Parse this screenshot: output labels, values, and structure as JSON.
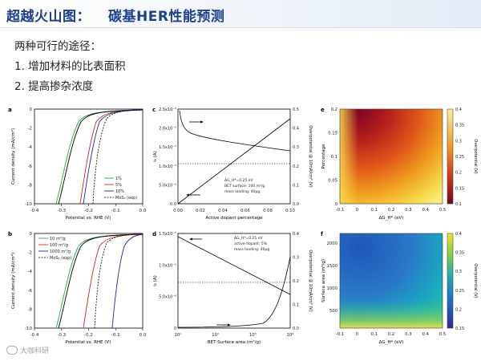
{
  "header": {
    "title_part1": "超越火山图：",
    "title_part2": "碳基HER性能预测"
  },
  "bullets": {
    "intro": "两种可行的途径：",
    "item1": "1. 增加材料的比表面积",
    "item2": "2. 提高掺杂浓度"
  },
  "watermark": "大咖科研",
  "colors": {
    "title": "#1a3f8c",
    "c_black": "#000000",
    "c_red": "#d42020",
    "c_green": "#28a745",
    "c_navy": "#1a2a8a"
  },
  "panels": {
    "a": {
      "label": "a",
      "ylabel": "Current density (mA/cm²)",
      "xlabel": "Potential vs. RHE (V)",
      "xticks": [
        "-0.4",
        "-0.3",
        "-0.2",
        "-0.1",
        "0.0"
      ],
      "yticks": [
        "0",
        "-2",
        "-4",
        "-6",
        "-8",
        "-10"
      ],
      "legend": [
        "1%",
        "5%",
        "10%",
        "MoS₂ (exp)"
      ]
    },
    "b": {
      "label": "b",
      "ylabel": "Current density (mA/cm²)",
      "xlabel": "Potential vs. RHE (V)",
      "xticks": [
        "-0.4",
        "-0.3",
        "-0.2",
        "-0.1",
        "0.0"
      ],
      "yticks": [
        "0",
        "-2",
        "-4",
        "-6",
        "-8",
        "-10"
      ],
      "legend": [
        "10 m²/g",
        "100 m²/g",
        "1000 m²/g",
        "MoS₂ (exp)"
      ]
    },
    "c": {
      "label": "c",
      "ylabel_left": "i₀ (A)",
      "ylabel_right": "Overpotential @ 10mA/cm² (V)",
      "xlabel": "Active dopant percentage",
      "xticks": [
        "0.00",
        "0.02",
        "0.04",
        "0.06",
        "0.08",
        "0.10"
      ],
      "yticks_left": [
        "0.0",
        "5.0x10⁻⁶",
        "1.0x10⁻⁵",
        "1.5x10⁻⁵",
        "2.0x10⁻⁵",
        "2.5x10⁻⁵"
      ],
      "yticks_right": [
        "0.0",
        "0.1",
        "0.2",
        "0.3",
        "0.4",
        "0.5"
      ],
      "notes": [
        "ΔG_H*=0.25 eV",
        "BET surface: 100 m²/g",
        "mass loading: 40μg"
      ]
    },
    "d": {
      "label": "d",
      "ylabel_left": "i₀ (A)",
      "ylabel_right": "Overpotential @ 10mA/cm² (V)",
      "xlabel": "BET Surface area (m²/g)",
      "xticks": [
        "10¹",
        "10²",
        "10³",
        "10⁴"
      ],
      "yticks_left": [
        "0",
        "5.0x10⁻⁶",
        "1.0x10⁻⁵",
        "1.5x10⁻⁵"
      ],
      "yticks_right": [
        "0.0",
        "0.1",
        "0.2",
        "0.3",
        "0.4"
      ],
      "notes": [
        "ΔG_H*=0.25 eV",
        "active dopant: 5%",
        "mass loading: 40μg"
      ]
    },
    "e": {
      "label": "e",
      "ylabel": "Percentage",
      "xlabel": "ΔG_H* (eV)",
      "cbar_label": "Overpotential (V)",
      "xticks": [
        "-0.1",
        "0",
        "0.1",
        "0.2",
        "0.3",
        "0.4",
        "0.5"
      ],
      "yticks": [
        "0.2",
        "0.15",
        "0.1",
        "0.05",
        "0"
      ],
      "cbar_ticks": [
        "0.4",
        "0.35",
        "0.3",
        "0.25",
        "0.2",
        "0.15",
        "0.1"
      ]
    },
    "f": {
      "label": "f",
      "ylabel": "Surface area (m²/g)",
      "xlabel": "ΔG_H* (eV)",
      "cbar_label": "Overpotential (V)",
      "xticks": [
        "-0.1",
        "0",
        "0.1",
        "0.2",
        "0.3",
        "0.4",
        "0.5"
      ],
      "yticks": [
        "2000",
        "1500",
        "1000",
        "500"
      ],
      "cbar_ticks": [
        "0.4",
        "0.35",
        "0.3",
        "0.25",
        "0.2",
        "0.15"
      ]
    }
  }
}
